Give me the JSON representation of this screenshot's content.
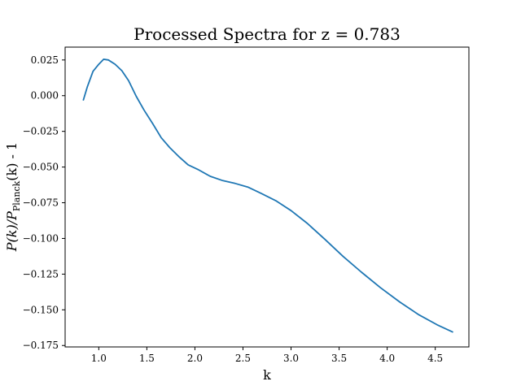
{
  "chart_data": {
    "type": "line",
    "title": "Processed Spectra for z = 0.783",
    "xlabel": "k",
    "ylabel": "P(k)/P_Planck(k) - 1",
    "ylabel_parts": {
      "main": "P(k)/P",
      "subscript": "Planck",
      "rest": "(k) - 1"
    },
    "xlim": [
      0.65,
      4.85
    ],
    "ylim": [
      -0.176,
      0.034
    ],
    "xticks": [
      1.0,
      1.5,
      2.0,
      2.5,
      3.0,
      3.5,
      4.0,
      4.5
    ],
    "xtick_labels": [
      "1.0",
      "1.5",
      "2.0",
      "2.5",
      "3.0",
      "3.5",
      "4.0",
      "4.5"
    ],
    "yticks": [
      0.025,
      0.0,
      -0.025,
      -0.05,
      -0.075,
      -0.1,
      -0.125,
      -0.15,
      -0.175
    ],
    "ytick_labels": [
      "0.025",
      "0.000",
      "−0.025",
      "−0.050",
      "−0.075",
      "−0.100",
      "−0.125",
      "−0.150",
      "−0.175"
    ],
    "grid": false,
    "series": [
      {
        "color": "#1f77b4",
        "x": [
          0.84,
          0.88,
          0.94,
          1.0,
          1.05,
          1.1,
          1.17,
          1.24,
          1.31,
          1.39,
          1.47,
          1.56,
          1.65,
          1.74,
          1.83,
          1.93,
          2.04,
          2.16,
          2.29,
          2.42,
          2.55,
          2.69,
          2.84,
          3.0,
          3.17,
          3.35,
          3.54,
          3.73,
          3.93,
          4.13,
          4.33,
          4.52,
          4.68
        ],
        "y": [
          -0.003,
          0.006,
          0.017,
          0.022,
          0.0255,
          0.025,
          0.022,
          0.0175,
          0.0105,
          -0.0005,
          -0.01,
          -0.0195,
          -0.0295,
          -0.0365,
          -0.0425,
          -0.0485,
          -0.052,
          -0.0565,
          -0.0595,
          -0.0615,
          -0.064,
          -0.0685,
          -0.0735,
          -0.0805,
          -0.0895,
          -0.1005,
          -0.1125,
          -0.1235,
          -0.1345,
          -0.1445,
          -0.1535,
          -0.1605,
          -0.1655
        ]
      }
    ]
  }
}
